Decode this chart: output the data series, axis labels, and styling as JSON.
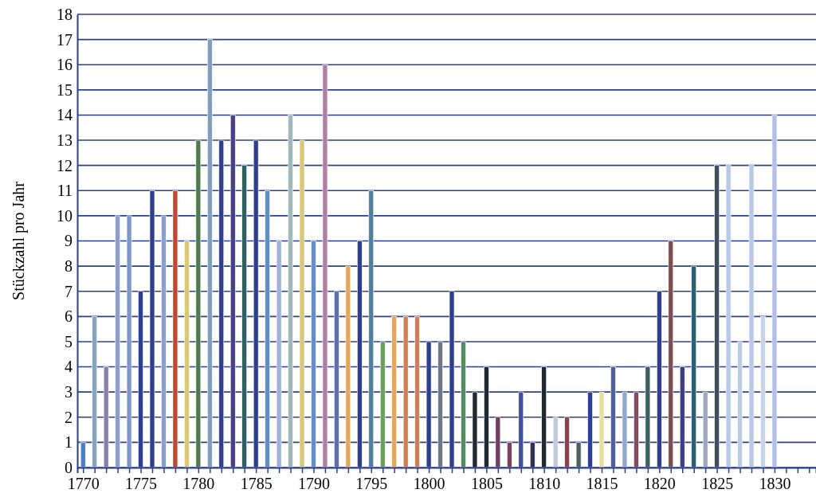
{
  "chart_data": {
    "type": "bar",
    "ylabel": "Stückzahl pro Jahr",
    "x": [
      1770,
      1771,
      1772,
      1773,
      1774,
      1775,
      1776,
      1777,
      1778,
      1779,
      1780,
      1781,
      1782,
      1783,
      1784,
      1785,
      1786,
      1787,
      1788,
      1789,
      1790,
      1791,
      1792,
      1793,
      1794,
      1795,
      1796,
      1797,
      1798,
      1799,
      1800,
      1801,
      1802,
      1803,
      1804,
      1805,
      1806,
      1807,
      1808,
      1809,
      1810,
      1811,
      1812,
      1813,
      1814,
      1815,
      1816,
      1817,
      1818,
      1819,
      1820,
      1821,
      1822,
      1823,
      1824,
      1825,
      1826,
      1827,
      1828,
      1829,
      1830
    ],
    "values": [
      1,
      6,
      4,
      10,
      10,
      7,
      11,
      10,
      11,
      9,
      13,
      17,
      13,
      14,
      12,
      13,
      11,
      9,
      14,
      13,
      9,
      16,
      7,
      8,
      9,
      11,
      5,
      6,
      6,
      6,
      5,
      5,
      7,
      5,
      3,
      4,
      2,
      1,
      3,
      1,
      4,
      2,
      2,
      1,
      3,
      3,
      4,
      3,
      3,
      4,
      7,
      9,
      4,
      8,
      3,
      12,
      12,
      5,
      12,
      6,
      14
    ],
    "colors": [
      "#4f7fc0",
      "#8aa4b8",
      "#8a80b0",
      "#8a9fd0",
      "#7f96c8",
      "#2f3f8f",
      "#2f3f8f",
      "#8a9fd0",
      "#c0482f",
      "#d8c878",
      "#4f7a4f",
      "#7f9fc0",
      "#2f3f8f",
      "#4a3f80",
      "#2f5f5f",
      "#2f3f8f",
      "#5f8fc8",
      "#a0b0d8",
      "#a0b8b8",
      "#d8c878",
      "#5f8fd0",
      "#b07fa8",
      "#5f6fa8",
      "#e0a860",
      "#2f3f8f",
      "#4f7fa0",
      "#6f9f5f",
      "#e0a860",
      "#d08050",
      "#d08050",
      "#2f3f8f",
      "#707888",
      "#2f3f8f",
      "#4f8f5f",
      "#202830",
      "#202830",
      "#6f3f5f",
      "#7f3f5f",
      "#3f4f9f",
      "#303050",
      "#202830",
      "#c0c8e0",
      "#8f3f4f",
      "#4f6060",
      "#2f3f8f",
      "#e8e0a0",
      "#4f5f9f",
      "#8fa8d0",
      "#7f4f5f",
      "#3f5f5f",
      "#2f3f8f",
      "#7f4f4f",
      "#3f3f7f",
      "#2f5f6f",
      "#a0a8c0",
      "#3f4f5f",
      "#b8c8e8",
      "#c0cce0",
      "#b8c8e8",
      "#c8d4e8",
      "#b0c0e8"
    ],
    "xlim": [
      1769.5,
      1833.6
    ],
    "xticks": [
      {
        "value": 1770,
        "label": "1770"
      },
      {
        "value": 1771,
        "label": null
      },
      {
        "value": 1772,
        "label": null
      },
      {
        "value": 1773,
        "label": null
      },
      {
        "value": 1774,
        "label": null
      },
      {
        "value": 1775,
        "label": "1775"
      },
      {
        "value": 1776,
        "label": null
      },
      {
        "value": 1777,
        "label": null
      },
      {
        "value": 1778,
        "label": null
      },
      {
        "value": 1779,
        "label": null
      },
      {
        "value": 1780,
        "label": "1780"
      },
      {
        "value": 1781,
        "label": null
      },
      {
        "value": 1782,
        "label": null
      },
      {
        "value": 1783,
        "label": null
      },
      {
        "value": 1784,
        "label": null
      },
      {
        "value": 1785,
        "label": "1785"
      },
      {
        "value": 1786,
        "label": null
      },
      {
        "value": 1787,
        "label": null
      },
      {
        "value": 1788,
        "label": null
      },
      {
        "value": 1789,
        "label": null
      },
      {
        "value": 1790,
        "label": "1790"
      },
      {
        "value": 1791,
        "label": null
      },
      {
        "value": 1792,
        "label": null
      },
      {
        "value": 1793,
        "label": null
      },
      {
        "value": 1794,
        "label": null
      },
      {
        "value": 1795,
        "label": "1795"
      },
      {
        "value": 1796,
        "label": null
      },
      {
        "value": 1797,
        "label": null
      },
      {
        "value": 1798,
        "label": null
      },
      {
        "value": 1799,
        "label": null
      },
      {
        "value": 1800,
        "label": "1800"
      },
      {
        "value": 1801,
        "label": null
      },
      {
        "value": 1802,
        "label": null
      },
      {
        "value": 1803,
        "label": null
      },
      {
        "value": 1804,
        "label": null
      },
      {
        "value": 1805,
        "label": "1805"
      },
      {
        "value": 1806,
        "label": null
      },
      {
        "value": 1807,
        "label": null
      },
      {
        "value": 1808,
        "label": null
      },
      {
        "value": 1809,
        "label": null
      },
      {
        "value": 1810,
        "label": "1810"
      },
      {
        "value": 1811,
        "label": null
      },
      {
        "value": 1812,
        "label": null
      },
      {
        "value": 1813,
        "label": null
      },
      {
        "value": 1814,
        "label": null
      },
      {
        "value": 1815,
        "label": "1815"
      },
      {
        "value": 1816,
        "label": null
      },
      {
        "value": 1817,
        "label": null
      },
      {
        "value": 1818,
        "label": null
      },
      {
        "value": 1819,
        "label": null
      },
      {
        "value": 1820,
        "label": "1820"
      },
      {
        "value": 1821,
        "label": null
      },
      {
        "value": 1822,
        "label": null
      },
      {
        "value": 1823,
        "label": null
      },
      {
        "value": 1824,
        "label": null
      },
      {
        "value": 1825,
        "label": "1825"
      },
      {
        "value": 1826,
        "label": null
      },
      {
        "value": 1827,
        "label": null
      },
      {
        "value": 1828,
        "label": null
      },
      {
        "value": 1829,
        "label": null
      },
      {
        "value": 1830,
        "label": "1830"
      },
      {
        "value": 1831,
        "label": null
      },
      {
        "value": 1832,
        "label": null
      },
      {
        "value": 1833,
        "label": null
      }
    ],
    "ylim": [
      0,
      18
    ],
    "yticks": [
      0,
      1,
      2,
      3,
      4,
      5,
      6,
      7,
      8,
      9,
      10,
      11,
      12,
      13,
      14,
      15,
      16,
      17,
      18
    ],
    "grid": "y"
  }
}
